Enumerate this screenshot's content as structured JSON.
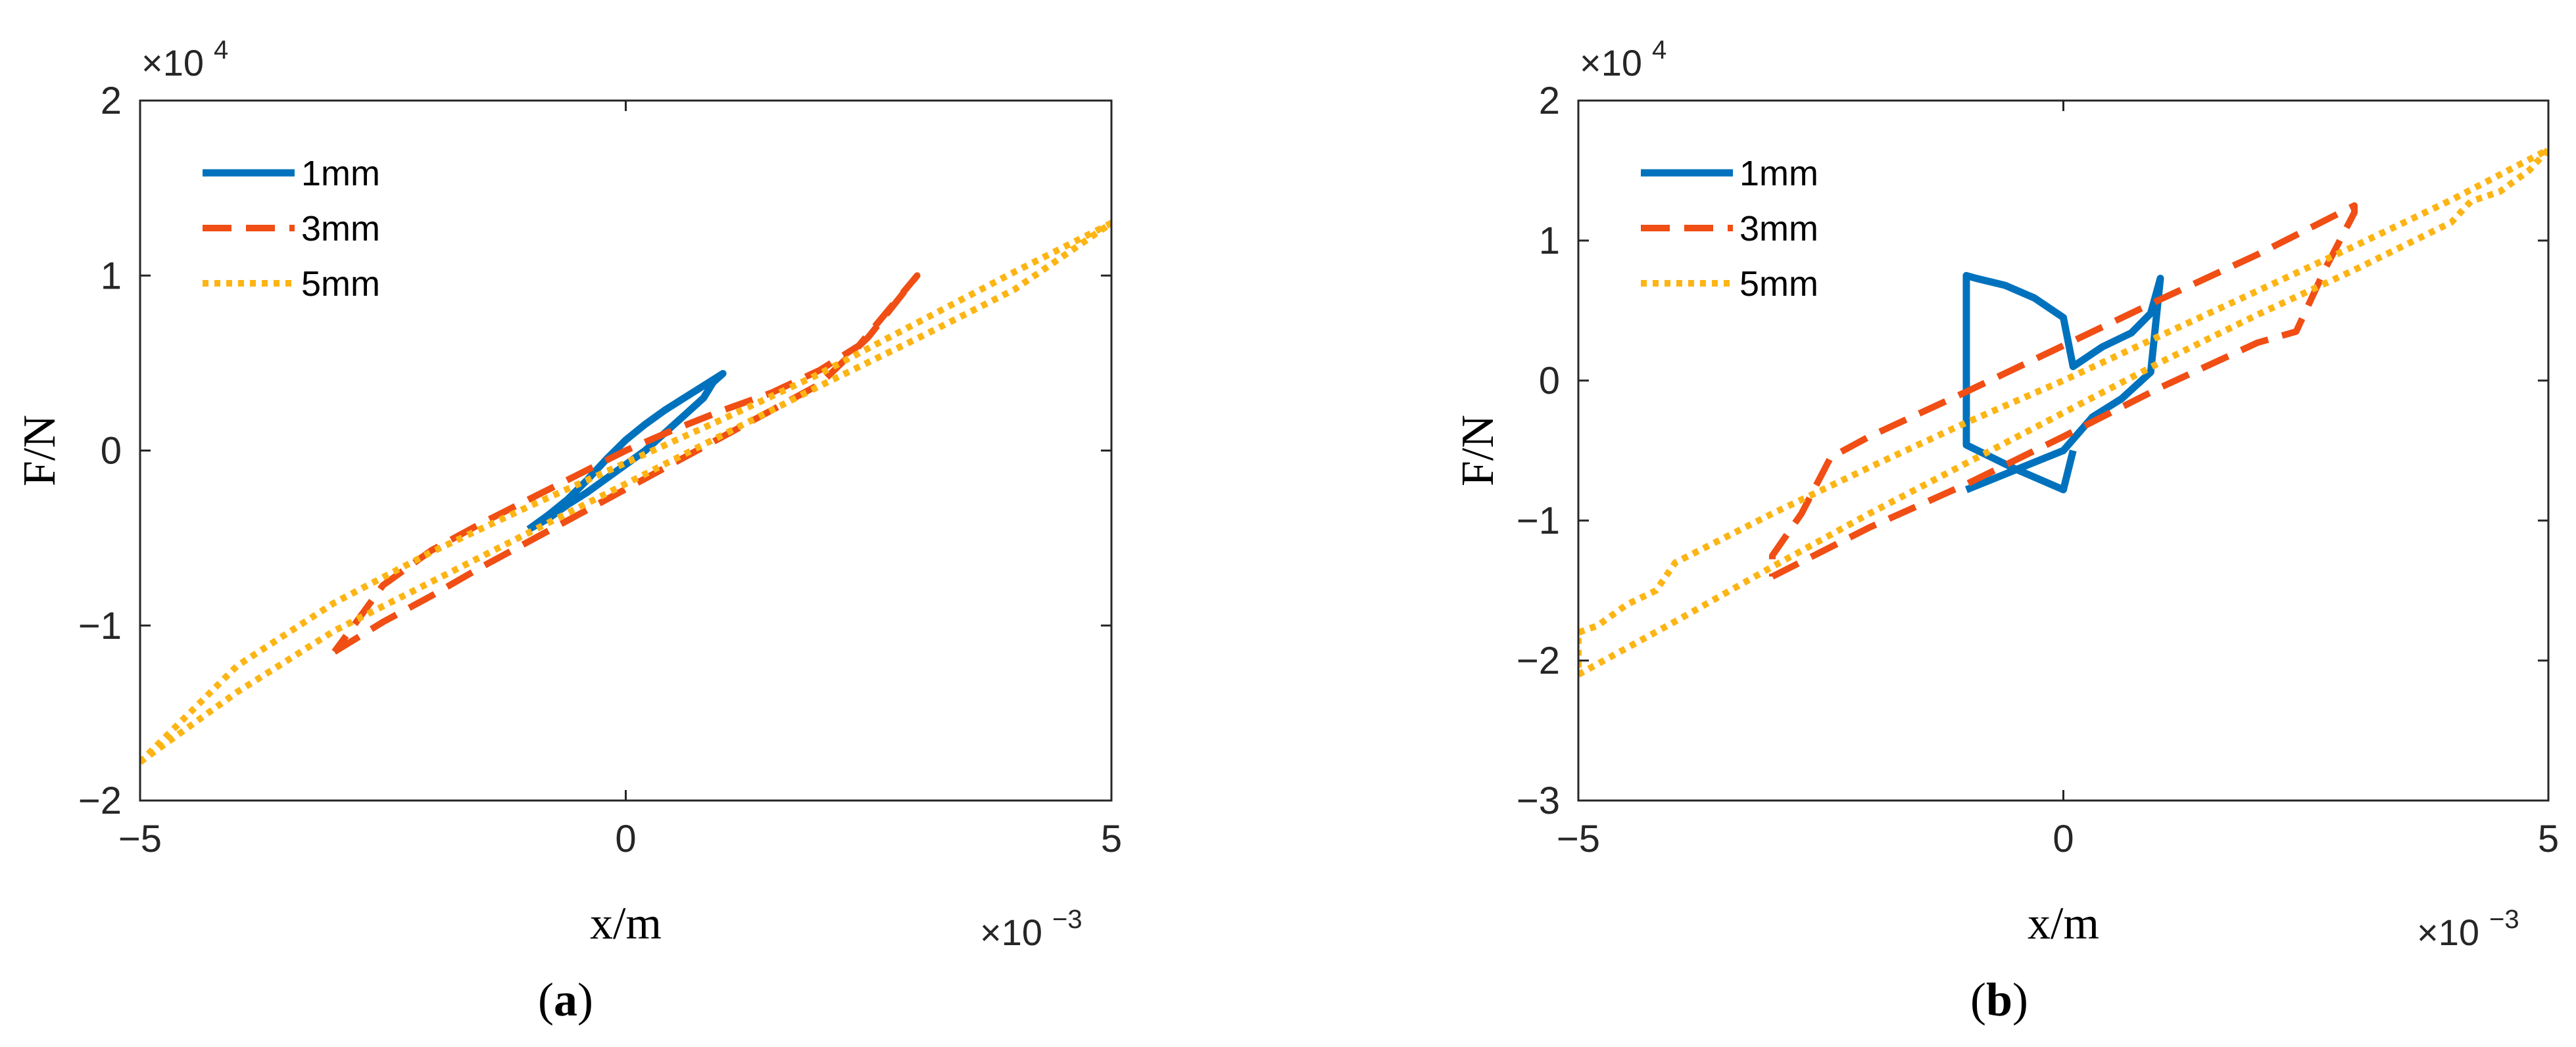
{
  "colors": {
    "1mm": "#0072BD",
    "3mm": "#F04E14",
    "5mm": "#FDB515"
  },
  "chart_data": [
    {
      "type": "line",
      "caption": "a",
      "xlabel": "x/m",
      "ylabel": "F/N",
      "x_multiplier": "×10",
      "x_exponent": "−3",
      "y_multiplier": "×10",
      "y_exponent": "4",
      "xlim": [
        -0.005,
        0.005
      ],
      "ylim": [
        -20000,
        20000
      ],
      "xticks": [
        -0.005,
        0,
        0.005
      ],
      "xtick_labels": [
        "−5",
        "0",
        "5"
      ],
      "yticks": [
        -20000,
        -10000,
        0,
        10000,
        20000
      ],
      "ytick_labels": [
        "−2",
        "−1",
        "0",
        "1",
        "2"
      ],
      "legend_position": "top-left",
      "grid": false,
      "series": [
        {
          "name": "1mm",
          "style": "solid",
          "x": [
            -0.001,
            -0.0008,
            -0.0006,
            -0.0004,
            -0.0002,
            0.0,
            0.0002,
            0.0004,
            0.0006,
            0.0008,
            0.001,
            0.0009,
            0.0008,
            0.0006,
            0.0004,
            0.0002,
            0.0,
            -0.0002,
            -0.0004,
            -0.0006,
            -0.0008,
            -0.001
          ],
          "y": [
            -4500,
            -3700,
            -2800,
            -1700,
            -500,
            600,
            1500,
            2300,
            3000,
            3700,
            4400,
            3900,
            3000,
            2000,
            1000,
            0,
            -800,
            -1600,
            -2400,
            -3100,
            -3900,
            -4500
          ]
        },
        {
          "name": "3mm",
          "style": "dashed",
          "x": [
            -0.003,
            -0.0025,
            -0.002,
            -0.0015,
            -0.001,
            -0.0005,
            0.0,
            0.0005,
            0.001,
            0.0015,
            0.002,
            0.0025,
            0.003,
            0.0027,
            0.0024,
            0.002,
            0.0015,
            0.001,
            0.0005,
            0.0,
            -0.0005,
            -0.001,
            -0.0015,
            -0.002,
            -0.0025,
            -0.0028,
            -0.003
          ],
          "y": [
            -11500,
            -9800,
            -8300,
            -6700,
            -5200,
            -3700,
            -2200,
            -700,
            800,
            2300,
            3800,
            6500,
            10000,
            8000,
            6000,
            4600,
            3300,
            2300,
            1200,
            0,
            -1400,
            -2800,
            -4200,
            -5700,
            -7700,
            -10000,
            -11500
          ]
        },
        {
          "name": "5mm",
          "style": "dotted",
          "x": [
            -0.005,
            -0.004,
            -0.003,
            -0.002,
            -0.001,
            0.0,
            0.001,
            0.002,
            0.003,
            0.004,
            0.005,
            0.004,
            0.003,
            0.002,
            0.001,
            0.0,
            -0.001,
            -0.002,
            -0.003,
            -0.004,
            -0.005
          ],
          "y": [
            -17800,
            -13800,
            -10300,
            -7500,
            -4700,
            -1900,
            900,
            3700,
            6400,
            9200,
            13000,
            10200,
            7300,
            4400,
            1800,
            -700,
            -3200,
            -5800,
            -8700,
            -12300,
            -17800
          ]
        }
      ]
    },
    {
      "type": "line",
      "caption": "b",
      "xlabel": "x/m",
      "ylabel": "F/N",
      "x_multiplier": "×10",
      "x_exponent": "−3",
      "y_multiplier": "×10",
      "y_exponent": "4",
      "xlim": [
        -0.005,
        0.005
      ],
      "ylim": [
        -30000,
        20000
      ],
      "xticks": [
        -0.005,
        0,
        0.005
      ],
      "xtick_labels": [
        "−5",
        "0",
        "5"
      ],
      "yticks": [
        -30000,
        -20000,
        -10000,
        0,
        10000,
        20000
      ],
      "ytick_labels": [
        "−3",
        "−2",
        "−1",
        "0",
        "1",
        "2"
      ],
      "legend_position": "top-left",
      "grid": false,
      "series": [
        {
          "name": "1mm",
          "style": "solid",
          "x": [
            -0.001,
            -0.0005,
            0.0,
            0.0003,
            0.0006,
            0.0009,
            0.001,
            0.0009,
            0.0007,
            0.0004,
            0.0001,
            0.0,
            -0.0003,
            -0.0006,
            -0.0009,
            -0.001,
            -0.001,
            -0.0005,
            0.0,
            0.0001
          ],
          "y": [
            -7800,
            -6400,
            -5000,
            -2600,
            -1300,
            600,
            7300,
            4800,
            3400,
            2400,
            1000,
            4500,
            5900,
            6800,
            7300,
            7500,
            -4600,
            -6300,
            -7800,
            -5000
          ],
          "note": "two-lobed S-shaped loop"
        },
        {
          "name": "3mm",
          "style": "dashed",
          "x": [
            -0.003,
            -0.002,
            -0.001,
            0.0,
            0.001,
            0.002,
            0.0024,
            0.0027,
            0.003,
            0.003,
            0.002,
            0.001,
            0.0,
            -0.001,
            -0.002,
            -0.0024,
            -0.0027,
            -0.003,
            -0.003
          ],
          "y": [
            -14000,
            -10500,
            -7400,
            -4000,
            -500,
            2700,
            3500,
            8000,
            12000,
            12500,
            9000,
            5800,
            2500,
            -800,
            -4000,
            -5500,
            -9500,
            -12500,
            -14000
          ]
        },
        {
          "name": "5mm",
          "style": "dotted",
          "x": [
            -0.005,
            -0.004,
            -0.003,
            -0.002,
            -0.001,
            0.0,
            0.001,
            0.002,
            0.003,
            0.004,
            0.0042,
            0.0045,
            0.0048,
            0.005,
            0.005,
            0.004,
            0.003,
            0.002,
            0.001,
            0.0,
            -0.001,
            -0.002,
            -0.003,
            -0.004,
            -0.0042,
            -0.0045,
            -0.0048,
            -0.005,
            -0.005
          ],
          "y": [
            -21000,
            -17200,
            -13300,
            -9500,
            -5900,
            -2300,
            1300,
            4700,
            7900,
            11300,
            12800,
            13500,
            15000,
            16500,
            16500,
            12900,
            9600,
            6400,
            3200,
            0,
            -3000,
            -6200,
            -9500,
            -13000,
            -15000,
            -16000,
            -17500,
            -18000,
            -21000
          ]
        }
      ]
    }
  ]
}
